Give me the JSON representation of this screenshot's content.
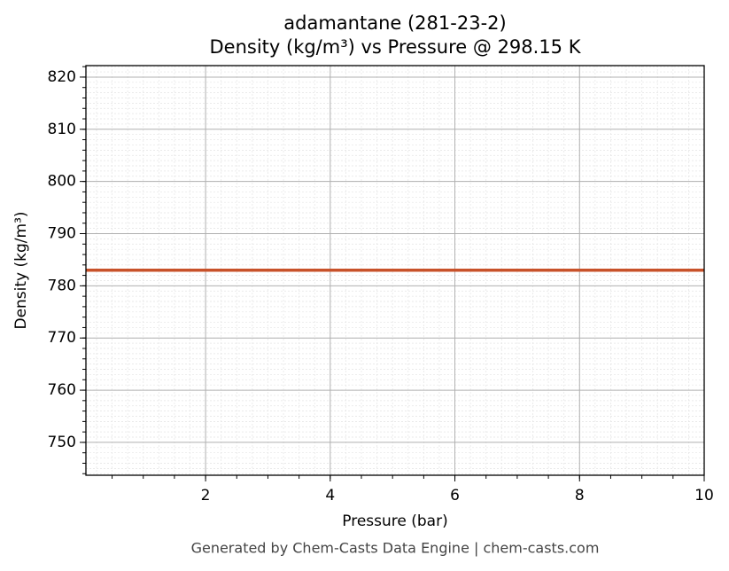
{
  "chart_data": {
    "type": "line",
    "title": "adamantane (281-23-2)",
    "subtitle": "Density (kg/m³) vs Pressure @ 298.15 K",
    "x_label": "Pressure (bar)",
    "y_label": "Density (kg/m³)",
    "caption": "Generated by Chem-Casts Data Engine | chem-casts.com",
    "x": [
      0.08,
      10
    ],
    "series": [
      {
        "name": "Density",
        "color": "#c8522a",
        "values": [
          783,
          783
        ]
      }
    ],
    "xlim": [
      0.08,
      10
    ],
    "xticks": [
      2,
      4,
      6,
      8,
      10
    ],
    "ylim": [
      743.7,
      822.2
    ],
    "yticks": [
      750,
      760,
      770,
      780,
      790,
      800,
      810,
      820
    ],
    "grid": true
  }
}
